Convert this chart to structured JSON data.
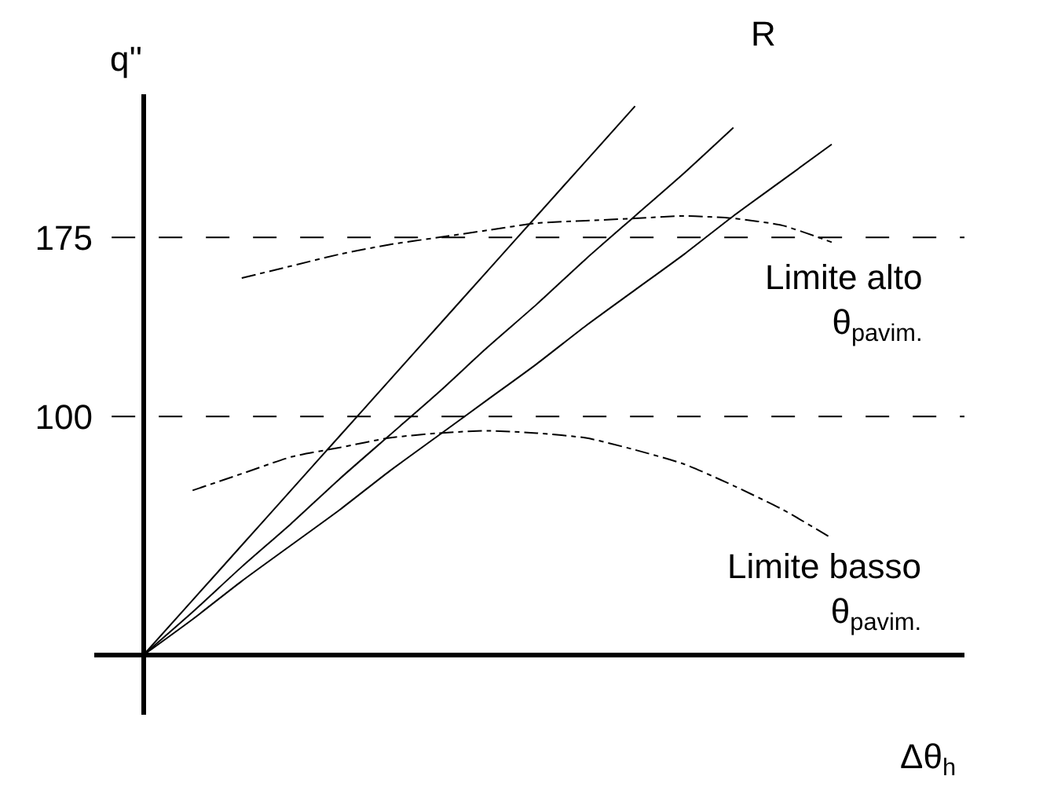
{
  "chart_data": {
    "type": "line",
    "xlabel": "Δθ$_{h}$",
    "ylabel": "q''",
    "categories": [
      null,
      null,
      null,
      null,
      null,
      null,
      null,
      null,
      null,
      null,
      null,
      null,
      null,
      null,
      null,
      null,
      null
    ],
    "series": [
      {
        "color": "#000000",
        "line_style": "solid",
        "values": [
          0,
          23,
          46,
          69,
          92,
          115,
          138,
          161,
          184,
          207,
          230,
          null,
          null,
          null,
          null,
          null,
          null
        ]
      },
      {
        "color": "#000000",
        "line_style": "solid",
        "values": [
          0,
          18,
          37,
          55,
          74,
          92,
          110,
          129,
          147,
          166,
          184,
          202,
          221,
          null,
          null,
          null,
          null
        ]
      },
      {
        "color": "#000000",
        "line_style": "solid",
        "values": [
          0,
          15,
          31,
          46,
          61,
          77,
          92,
          107,
          122,
          138,
          153,
          168,
          184,
          199,
          214,
          null,
          null
        ]
      },
      {
        "name": "Limite alto\nθ$_{pavim.}$",
        "color": "#000000",
        "line_style": "dashdot",
        "values": [
          null,
          null,
          158,
          163,
          168,
          172,
          175,
          178,
          181,
          182,
          183,
          184,
          183,
          180,
          173,
          null,
          null
        ]
      },
      {
        "name": "Limite basso\nθ$_{pavim.}$",
        "color": "#000000",
        "line_style": "dashdot",
        "values": [
          null,
          69,
          76,
          83,
          87,
          91,
          93,
          94,
          93,
          91,
          86,
          80,
          71,
          61,
          49,
          null,
          null
        ]
      }
    ],
    "ylim": [
      -25,
      235
    ],
    "yticks": [
      100,
      175
    ],
    "tick_labels": "y",
    "legend": false,
    "ref_lines": [
      {
        "axis": "y",
        "value": 100,
        "color": "#000000",
        "line_style": "dashed"
      },
      {
        "axis": "y",
        "value": 175,
        "color": "#000000",
        "line_style": "dashed"
      }
    ],
    "annotations": [
      "R"
    ]
  }
}
